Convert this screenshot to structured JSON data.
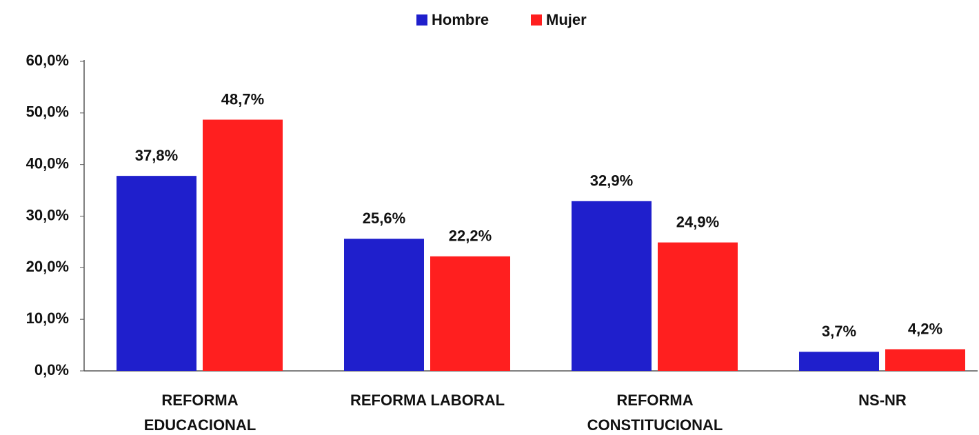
{
  "chart_data": {
    "type": "bar",
    "categories": [
      "REFORMA\nEDUCACIONAL",
      "REFORMA LABORAL",
      "REFORMA\nCONSTITUCIONAL",
      "NS-NR"
    ],
    "series": [
      {
        "name": "Hombre",
        "color": "#1f1fcc",
        "values": [
          37.8,
          25.6,
          32.9,
          3.7
        ],
        "value_labels": [
          "37,8%",
          "25,6%",
          "32,9%",
          "3,7%"
        ]
      },
      {
        "name": "Mujer",
        "color": "#ff1f1f",
        "values": [
          48.7,
          22.2,
          24.9,
          4.2
        ],
        "value_labels": [
          "48,7%",
          "22,2%",
          "24,9%",
          "4,2%"
        ]
      }
    ],
    "ylim": [
      0,
      60
    ],
    "yticks": [
      {
        "value": 0,
        "label": "0,0%"
      },
      {
        "value": 10,
        "label": "10,0%"
      },
      {
        "value": 20,
        "label": "20,0%"
      },
      {
        "value": 30,
        "label": "30,0%"
      },
      {
        "value": 40,
        "label": "40,0%"
      },
      {
        "value": 50,
        "label": "50,0%"
      },
      {
        "value": 60,
        "label": "60,0%"
      }
    ],
    "grid": false,
    "legend": "top"
  }
}
